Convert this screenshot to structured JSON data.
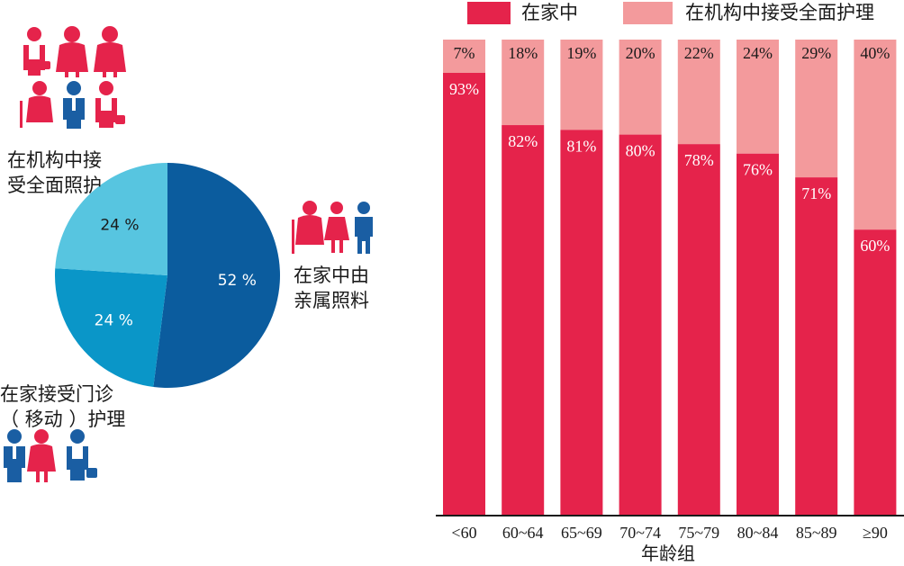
{
  "colors": {
    "home": "#e5234b",
    "institution": "#f39a9c",
    "pie_relatives": "#0b5c9e",
    "pie_outpatient": "#0a96c8",
    "pie_institution": "#57c5e0",
    "icon_red": "#e5234b",
    "icon_blue": "#1a5ea3"
  },
  "chart_data": [
    {
      "type": "pie",
      "slices": [
        {
          "label": "在家中由亲属照料",
          "label_lines": [
            "在家中由",
            "亲属照料"
          ],
          "value": 52,
          "value_label": "52 %",
          "color": "#0b5c9e"
        },
        {
          "label": "在家接受门诊（移动）护理",
          "label_lines": [
            "在家接受门诊",
            "（ 移动 ）护理"
          ],
          "value": 24,
          "value_label": "24 %",
          "color": "#0a96c8"
        },
        {
          "label": "在机构中接受全面照护",
          "label_lines": [
            "在机构中接",
            "受全面照护"
          ],
          "value": 24,
          "value_label": "24 %",
          "color": "#57c5e0"
        }
      ]
    },
    {
      "type": "bar",
      "stacked": true,
      "xlabel": "年龄组",
      "ylim": [
        0,
        100
      ],
      "categories": [
        "<60",
        "60~64",
        "65~69",
        "70~74",
        "75~79",
        "80~84",
        "85~89",
        "≥90"
      ],
      "legend_position": "top",
      "series": [
        {
          "name": "在家中",
          "color": "#e5234b",
          "values": [
            93,
            82,
            81,
            80,
            78,
            76,
            71,
            60
          ],
          "value_labels": [
            "93%",
            "82%",
            "81%",
            "80%",
            "78%",
            "76%",
            "71%",
            "60%"
          ]
        },
        {
          "name": "在机构中接受全面护理",
          "color": "#f39a9c",
          "values": [
            7,
            18,
            19,
            20,
            22,
            24,
            29,
            40
          ],
          "value_labels": [
            "7%",
            "18%",
            "19%",
            "20%",
            "22%",
            "24%",
            "29%",
            "40%"
          ]
        }
      ]
    }
  ]
}
